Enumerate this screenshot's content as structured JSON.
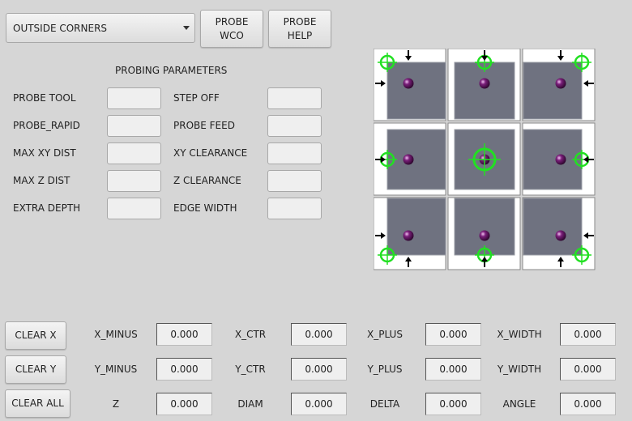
{
  "mode_select": {
    "value": "OUTSIDE CORNERS"
  },
  "buttons": {
    "probe_wco": "PROBE\nWCO",
    "probe_help": "PROBE\nHELP",
    "clear_x": "CLEAR X",
    "clear_y": "CLEAR Y",
    "clear_all": "CLEAR ALL"
  },
  "parameters": {
    "title": "PROBING PARAMETERS",
    "left": [
      {
        "label": "PROBE TOOL",
        "value": ""
      },
      {
        "label": "PROBE_RAPID",
        "value": ""
      },
      {
        "label": "MAX XY DIST",
        "value": ""
      },
      {
        "label": "MAX Z DIST",
        "value": ""
      },
      {
        "label": "EXTRA DEPTH",
        "value": ""
      }
    ],
    "right": [
      {
        "label": "STEP OFF",
        "value": ""
      },
      {
        "label": "PROBE FEED",
        "value": ""
      },
      {
        "label": "XY CLEARANCE",
        "value": ""
      },
      {
        "label": "Z CLEARANCE",
        "value": ""
      },
      {
        "label": "EDGE WIDTH",
        "value": ""
      }
    ]
  },
  "results": [
    [
      {
        "label": "X_MINUS",
        "value": "0.000"
      },
      {
        "label": "X_CTR",
        "value": "0.000"
      },
      {
        "label": "X_PLUS",
        "value": "0.000"
      },
      {
        "label": "X_WIDTH",
        "value": "0.000"
      }
    ],
    [
      {
        "label": "Y_MINUS",
        "value": "0.000"
      },
      {
        "label": "Y_CTR",
        "value": "0.000"
      },
      {
        "label": "Y_PLUS",
        "value": "0.000"
      },
      {
        "label": "Y_WIDTH",
        "value": "0.000"
      }
    ],
    [
      {
        "label": "Z",
        "value": "0.000"
      },
      {
        "label": "DIAM",
        "value": "0.000"
      },
      {
        "label": "DELTA",
        "value": "0.000"
      },
      {
        "label": "ANGLE",
        "value": "0.000"
      }
    ]
  ],
  "colors": {
    "background": "#d6d6d6",
    "workpiece": "#6f7280",
    "crosshair": "#22e022",
    "probe_ball": "#7a1f7a"
  }
}
